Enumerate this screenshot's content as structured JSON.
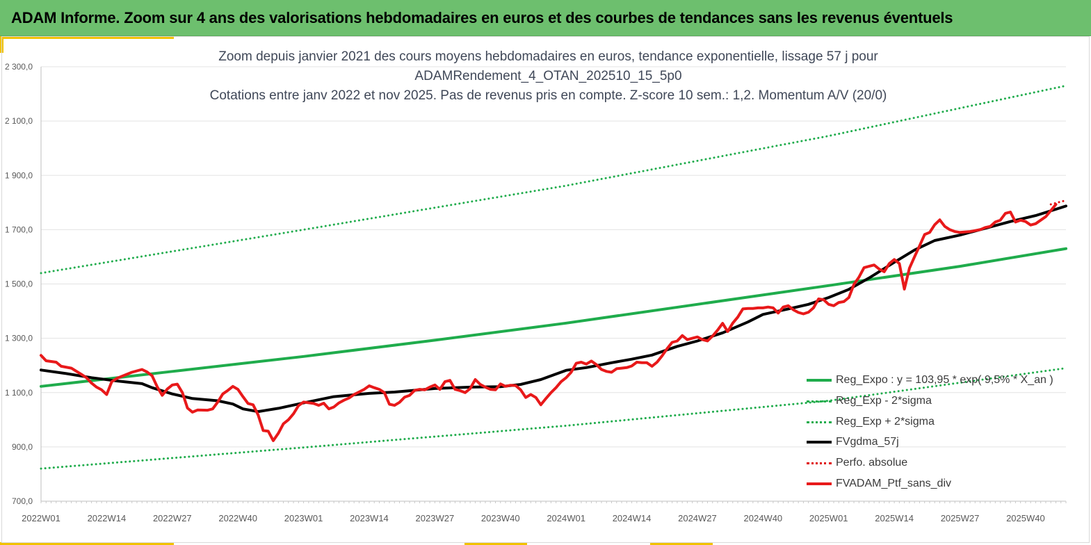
{
  "banner": {
    "title": "ADAM Informe. Zoom sur 4 ans des valorisations hebdomadaires en euros et des courbes de tendances sans les revenus éventuels"
  },
  "colors": {
    "banner": "#6dbf6e",
    "accent": "#f2c200",
    "reg_expo": "#1fac4c",
    "sigma": "#1fac4c",
    "fvgdma": "#000000",
    "perfo": "#e01010",
    "fvadam": "#e8191a"
  },
  "chart_data": {
    "type": "line",
    "title_lines": [
      "Zoom depuis janvier 2021 des cours moyens hebdomadaires  en euros, tendance exponentielle, lissage 57 j pour",
      "ADAMRendement_4_OTAN_202510_15_5p0",
      "Cotations  entre janv 2022 et nov 2025. Pas de revenus pris en compte. Z-score 10 sem.: 1,2. Momentum A/V (20/0)"
    ],
    "x_ticks": [
      "2022W01",
      "2022W14",
      "2022W27",
      "2022W40",
      "2023W01",
      "2023W14",
      "2023W27",
      "2023W40",
      "2024W01",
      "2024W14",
      "2024W27",
      "2024W40",
      "2025W01",
      "2025W14",
      "2025W27",
      "2025W40"
    ],
    "x_tick_weeks": [
      0,
      13,
      26,
      39,
      52,
      65,
      78,
      91,
      104,
      117,
      130,
      143,
      156,
      169,
      182,
      195
    ],
    "x_range_weeks": [
      0,
      203
    ],
    "y_ticks": [
      "700,0",
      "900,0",
      "1 100,0",
      "1 300,0",
      "1 500,0",
      "1 700,0",
      "1 900,0",
      "2 100,0",
      "2 300,0"
    ],
    "ylim": [
      700,
      2300
    ],
    "grid": true,
    "legend_position": "bottom-right",
    "legend": [
      {
        "label": "Reg_Expo : y = 103,95 * exp( 9,5% * X_an )",
        "style": "solid",
        "color": "#1fac4c"
      },
      {
        "label": "Reg_Exp - 2*sigma",
        "style": "dotted",
        "color": "#1fac4c"
      },
      {
        "label": "Reg_Exp + 2*sigma",
        "style": "dotted",
        "color": "#1fac4c"
      },
      {
        "label": "FVgdma_57j",
        "style": "solid",
        "color": "#000000"
      },
      {
        "label": "Perfo. absolue",
        "style": "dotted",
        "color": "#e01010"
      },
      {
        "label": "FVADAM_Ptf_sans_div",
        "style": "solid",
        "color": "#e8191a"
      }
    ],
    "series": [
      {
        "name": "Reg_Expo : y = 103,95 * exp( 9,5% * X_an )",
        "style": "solid",
        "color": "#1fac4c",
        "width": 4,
        "points": [
          [
            0,
            1123
          ],
          [
            26,
            1178
          ],
          [
            52,
            1233
          ],
          [
            78,
            1293
          ],
          [
            104,
            1356
          ],
          [
            130,
            1425
          ],
          [
            156,
            1494
          ],
          [
            182,
            1565
          ],
          [
            203,
            1630
          ]
        ]
      },
      {
        "name": "Reg_Exp - 2*sigma",
        "style": "dotted",
        "color": "#1fac4c",
        "width": 3,
        "points": [
          [
            0,
            820
          ],
          [
            52,
            898
          ],
          [
            104,
            978
          ],
          [
            156,
            1070
          ],
          [
            203,
            1190
          ]
        ]
      },
      {
        "name": "Reg_Exp + 2*sigma",
        "style": "dotted",
        "color": "#1fac4c",
        "width": 3,
        "points": [
          [
            0,
            1540
          ],
          [
            52,
            1700
          ],
          [
            104,
            1862
          ],
          [
            156,
            2045
          ],
          [
            203,
            2230
          ]
        ]
      },
      {
        "name": "FVgdma_57j",
        "style": "solid",
        "color": "#000000",
        "width": 4,
        "points": [
          [
            0,
            1183
          ],
          [
            5,
            1170
          ],
          [
            10,
            1155
          ],
          [
            15,
            1143
          ],
          [
            20,
            1133
          ],
          [
            22,
            1118
          ],
          [
            26,
            1095
          ],
          [
            30,
            1078
          ],
          [
            35,
            1070
          ],
          [
            38,
            1058
          ],
          [
            40,
            1040
          ],
          [
            43,
            1030
          ],
          [
            47,
            1042
          ],
          [
            52,
            1062
          ],
          [
            58,
            1085
          ],
          [
            65,
            1097
          ],
          [
            70,
            1102
          ],
          [
            78,
            1115
          ],
          [
            85,
            1120
          ],
          [
            91,
            1122
          ],
          [
            95,
            1130
          ],
          [
            99,
            1148
          ],
          [
            104,
            1182
          ],
          [
            108,
            1192
          ],
          [
            113,
            1210
          ],
          [
            117,
            1223
          ],
          [
            121,
            1238
          ],
          [
            126,
            1270
          ],
          [
            130,
            1290
          ],
          [
            135,
            1320
          ],
          [
            140,
            1360
          ],
          [
            143,
            1388
          ],
          [
            148,
            1408
          ],
          [
            152,
            1425
          ],
          [
            156,
            1450
          ],
          [
            160,
            1480
          ],
          [
            164,
            1522
          ],
          [
            169,
            1580
          ],
          [
            173,
            1625
          ],
          [
            177,
            1660
          ],
          [
            182,
            1680
          ],
          [
            187,
            1705
          ],
          [
            192,
            1730
          ],
          [
            197,
            1752
          ],
          [
            203,
            1787
          ]
        ]
      },
      {
        "name": "Perfo. absolue",
        "style": "dotted",
        "color": "#e01010",
        "width": 3,
        "points": [
          [
            200,
            1793
          ],
          [
            203,
            1808
          ]
        ]
      },
      {
        "name": "FVADAM_Ptf_sans_div",
        "style": "solid",
        "color": "#e8191a",
        "width": 4,
        "points": [
          [
            0,
            1237
          ],
          [
            1,
            1217
          ],
          [
            3,
            1212
          ],
          [
            4,
            1197
          ],
          [
            6,
            1190
          ],
          [
            8,
            1167
          ],
          [
            9,
            1155
          ],
          [
            10,
            1135
          ],
          [
            11,
            1120
          ],
          [
            12,
            1110
          ],
          [
            13,
            1093
          ],
          [
            14,
            1140
          ],
          [
            15,
            1152
          ],
          [
            16,
            1160
          ],
          [
            18,
            1175
          ],
          [
            20,
            1185
          ],
          [
            21,
            1176
          ],
          [
            22,
            1162
          ],
          [
            23,
            1122
          ],
          [
            24,
            1090
          ],
          [
            25,
            1113
          ],
          [
            26,
            1128
          ],
          [
            27,
            1131
          ],
          [
            28,
            1100
          ],
          [
            29,
            1043
          ],
          [
            30,
            1028
          ],
          [
            31,
            1036
          ],
          [
            33,
            1035
          ],
          [
            34,
            1040
          ],
          [
            35,
            1065
          ],
          [
            36,
            1095
          ],
          [
            37,
            1108
          ],
          [
            38,
            1123
          ],
          [
            39,
            1112
          ],
          [
            40,
            1085
          ],
          [
            41,
            1060
          ],
          [
            42,
            1055
          ],
          [
            43,
            1018
          ],
          [
            44,
            960
          ],
          [
            45,
            958
          ],
          [
            46,
            923
          ],
          [
            47,
            950
          ],
          [
            48,
            985
          ],
          [
            49,
            1000
          ],
          [
            50,
            1022
          ],
          [
            51,
            1052
          ],
          [
            52,
            1065
          ],
          [
            54,
            1060
          ],
          [
            55,
            1053
          ],
          [
            56,
            1061
          ],
          [
            57,
            1040
          ],
          [
            58,
            1047
          ],
          [
            59,
            1062
          ],
          [
            60,
            1072
          ],
          [
            61,
            1080
          ],
          [
            62,
            1093
          ],
          [
            64,
            1112
          ],
          [
            65,
            1125
          ],
          [
            66,
            1118
          ],
          [
            67,
            1112
          ],
          [
            68,
            1100
          ],
          [
            69,
            1057
          ],
          [
            70,
            1053
          ],
          [
            71,
            1064
          ],
          [
            72,
            1083
          ],
          [
            73,
            1090
          ],
          [
            74,
            1108
          ],
          [
            75,
            1112
          ],
          [
            76,
            1110
          ],
          [
            77,
            1120
          ],
          [
            78,
            1128
          ],
          [
            79,
            1112
          ],
          [
            80,
            1140
          ],
          [
            81,
            1145
          ],
          [
            82,
            1112
          ],
          [
            83,
            1107
          ],
          [
            84,
            1100
          ],
          [
            85,
            1115
          ],
          [
            86,
            1148
          ],
          [
            87,
            1130
          ],
          [
            88,
            1120
          ],
          [
            89,
            1112
          ],
          [
            90,
            1110
          ],
          [
            91,
            1132
          ],
          [
            92,
            1123
          ],
          [
            93,
            1127
          ],
          [
            94,
            1126
          ],
          [
            95,
            1110
          ],
          [
            96,
            1082
          ],
          [
            97,
            1093
          ],
          [
            98,
            1082
          ],
          [
            99,
            1055
          ],
          [
            100,
            1078
          ],
          [
            101,
            1100
          ],
          [
            102,
            1118
          ],
          [
            103,
            1140
          ],
          [
            104,
            1155
          ],
          [
            105,
            1175
          ],
          [
            106,
            1208
          ],
          [
            107,
            1212
          ],
          [
            108,
            1205
          ],
          [
            109,
            1216
          ],
          [
            110,
            1203
          ],
          [
            111,
            1185
          ],
          [
            112,
            1178
          ],
          [
            113,
            1175
          ],
          [
            114,
            1188
          ],
          [
            115,
            1190
          ],
          [
            116,
            1192
          ],
          [
            117,
            1198
          ],
          [
            118,
            1212
          ],
          [
            119,
            1210
          ],
          [
            120,
            1210
          ],
          [
            121,
            1197
          ],
          [
            122,
            1212
          ],
          [
            123,
            1235
          ],
          [
            124,
            1262
          ],
          [
            125,
            1285
          ],
          [
            126,
            1290
          ],
          [
            127,
            1310
          ],
          [
            128,
            1295
          ],
          [
            129,
            1300
          ],
          [
            130,
            1305
          ],
          [
            131,
            1295
          ],
          [
            132,
            1290
          ],
          [
            133,
            1308
          ],
          [
            134,
            1330
          ],
          [
            135,
            1355
          ],
          [
            136,
            1325
          ],
          [
            137,
            1356
          ],
          [
            138,
            1378
          ],
          [
            139,
            1408
          ],
          [
            140,
            1410
          ],
          [
            141,
            1410
          ],
          [
            142,
            1412
          ],
          [
            143,
            1412
          ],
          [
            144,
            1415
          ],
          [
            145,
            1412
          ],
          [
            146,
            1393
          ],
          [
            147,
            1415
          ],
          [
            148,
            1420
          ],
          [
            149,
            1405
          ],
          [
            150,
            1395
          ],
          [
            151,
            1390
          ],
          [
            152,
            1396
          ],
          [
            153,
            1412
          ],
          [
            154,
            1445
          ],
          [
            155,
            1442
          ],
          [
            156,
            1425
          ],
          [
            157,
            1420
          ],
          [
            158,
            1432
          ],
          [
            159,
            1435
          ],
          [
            160,
            1450
          ],
          [
            161,
            1498
          ],
          [
            162,
            1525
          ],
          [
            163,
            1560
          ],
          [
            164,
            1565
          ],
          [
            165,
            1570
          ],
          [
            166,
            1555
          ],
          [
            167,
            1545
          ],
          [
            168,
            1575
          ],
          [
            169,
            1590
          ],
          [
            170,
            1575
          ],
          [
            171,
            1481
          ],
          [
            172,
            1558
          ],
          [
            173,
            1600
          ],
          [
            174,
            1640
          ],
          [
            175,
            1682
          ],
          [
            176,
            1690
          ],
          [
            177,
            1718
          ],
          [
            178,
            1736
          ],
          [
            179,
            1712
          ],
          [
            180,
            1700
          ],
          [
            181,
            1693
          ],
          [
            182,
            1690
          ],
          [
            184,
            1693
          ],
          [
            186,
            1700
          ],
          [
            187,
            1708
          ],
          [
            188,
            1712
          ],
          [
            189,
            1728
          ],
          [
            190,
            1735
          ],
          [
            191,
            1760
          ],
          [
            192,
            1765
          ],
          [
            193,
            1728
          ],
          [
            194,
            1735
          ],
          [
            195,
            1730
          ],
          [
            196,
            1717
          ],
          [
            197,
            1722
          ],
          [
            198,
            1735
          ],
          [
            199,
            1748
          ],
          [
            200,
            1770
          ],
          [
            201,
            1793
          ]
        ]
      }
    ]
  }
}
